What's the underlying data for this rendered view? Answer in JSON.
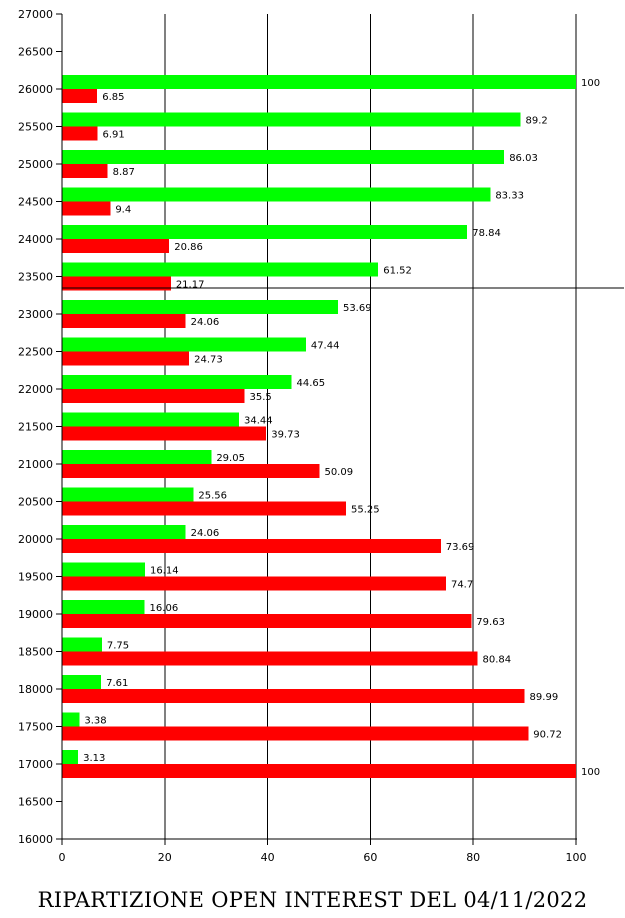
{
  "chart_data": {
    "type": "bar",
    "orientation": "horizontal",
    "title": "RIPARTIZIONE OPEN INTEREST DEL 04/11/2022",
    "xlabel": "",
    "ylabel": "",
    "xlim": [
      0,
      100
    ],
    "ylim": [
      16000,
      27000
    ],
    "x_ticks": [
      0,
      20,
      40,
      60,
      80,
      100
    ],
    "y_ticks": [
      16000,
      16500,
      17000,
      17500,
      18000,
      18500,
      19000,
      19500,
      20000,
      20500,
      21000,
      21500,
      22000,
      22500,
      23000,
      23500,
      24000,
      24500,
      25000,
      25500,
      26000,
      26500,
      27000
    ],
    "grid": "vertical",
    "reference_line": 23350,
    "categories": [
      26000,
      25500,
      25000,
      24500,
      24000,
      23500,
      23000,
      22500,
      22000,
      21500,
      21000,
      20500,
      20000,
      19500,
      19000,
      18500,
      18000,
      17500,
      17000
    ],
    "series": [
      {
        "color": "#00ff00",
        "values": [
          100,
          89.2,
          86.03,
          83.33,
          78.84,
          61.52,
          53.69,
          47.44,
          44.65,
          34.44,
          29.05,
          25.56,
          24.06,
          16.14,
          16.06,
          7.75,
          7.61,
          3.38,
          3.13
        ]
      },
      {
        "color": "#ff0000",
        "values": [
          6.85,
          6.91,
          8.87,
          9.4,
          20.86,
          21.17,
          24.06,
          24.73,
          35.5,
          39.73,
          50.09,
          55.25,
          73.69,
          74.7,
          79.63,
          80.84,
          89.99,
          90.72,
          100
        ]
      }
    ]
  }
}
